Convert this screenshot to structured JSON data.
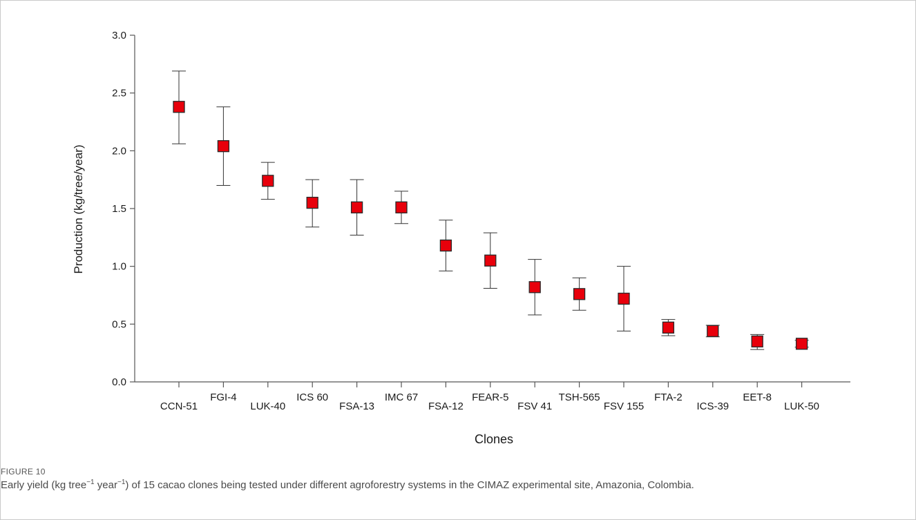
{
  "figure": {
    "label": "FIGURE 10",
    "caption_parts": {
      "p1": "Early yield (kg tree",
      "sup1": "−1",
      "p2": " year",
      "sup2": "−1",
      "p3": ") of 15 cacao clones being tested under different agroforestry systems in the CIMAZ experimental site, Amazonia, Colombia."
    }
  },
  "chart_data": {
    "type": "scatter",
    "title": "",
    "xlabel": "Clones",
    "ylabel": "Production (kg/tree/year)",
    "ylim": [
      0.0,
      3.0
    ],
    "yticks": [
      "0.0",
      "0.5",
      "1.0",
      "1.5",
      "2.0",
      "2.5",
      "3.0"
    ],
    "grid": false,
    "marker_color": "#e8000b",
    "categories": [
      "CCN-51",
      "FGI-4",
      "LUK-40",
      "ICS 60",
      "FSA-13",
      "IMC 67",
      "FSA-12",
      "FEAR-5",
      "FSV 41",
      "TSH-565",
      "FSV 155",
      "FTA-2",
      "ICS-39",
      "EET-8",
      "LUK-50"
    ],
    "label_row": [
      "low",
      "high",
      "low",
      "high",
      "low",
      "high",
      "low",
      "high",
      "low",
      "high",
      "low",
      "high",
      "low",
      "high",
      "low"
    ],
    "values": [
      2.38,
      2.04,
      1.74,
      1.55,
      1.51,
      1.51,
      1.18,
      1.05,
      0.82,
      0.76,
      0.72,
      0.47,
      0.44,
      0.35,
      0.33
    ],
    "error_upper": [
      2.69,
      2.38,
      1.9,
      1.75,
      1.75,
      1.65,
      1.4,
      1.29,
      1.06,
      0.9,
      1.0,
      0.54,
      0.49,
      0.41,
      0.36
    ],
    "error_lower": [
      2.06,
      1.7,
      1.58,
      1.34,
      1.27,
      1.37,
      0.96,
      0.81,
      0.58,
      0.62,
      0.44,
      0.4,
      0.39,
      0.28,
      0.3
    ]
  }
}
